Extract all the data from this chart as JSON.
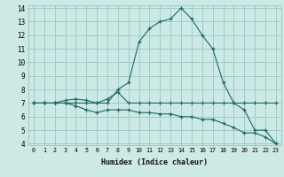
{
  "xlabel": "Humidex (Indice chaleur)",
  "x": [
    0,
    1,
    2,
    3,
    4,
    5,
    6,
    7,
    8,
    9,
    10,
    11,
    12,
    13,
    14,
    15,
    16,
    17,
    18,
    19,
    20,
    21,
    22,
    23
  ],
  "line1": [
    7,
    7,
    7,
    7,
    7,
    7,
    7,
    7,
    8,
    8.5,
    11.5,
    12.5,
    13,
    13.2,
    14,
    13.2,
    12,
    11,
    8.5,
    7,
    6.5,
    5,
    5,
    4
  ],
  "line2": [
    7,
    7,
    7,
    7.2,
    7.3,
    7.2,
    7,
    7.3,
    7.8,
    7,
    7,
    7,
    7,
    7,
    7,
    7,
    7,
    7,
    7,
    7,
    7,
    7,
    7,
    7
  ],
  "line3": [
    7,
    7,
    7,
    7,
    6.8,
    6.5,
    6.3,
    6.5,
    6.5,
    6.5,
    6.3,
    6.3,
    6.2,
    6.2,
    6.0,
    6.0,
    5.8,
    5.8,
    5.5,
    5.2,
    4.8,
    4.8,
    4.5,
    4
  ],
  "bg_color": "#cce9e5",
  "grid_color": "#9eccc7",
  "line_color": "#1a6b5e",
  "ylim": [
    4,
    14
  ],
  "xlim": [
    -0.5,
    23.5
  ],
  "yticks": [
    4,
    5,
    6,
    7,
    8,
    9,
    10,
    11,
    12,
    13,
    14
  ],
  "xticks": [
    0,
    1,
    2,
    3,
    4,
    5,
    6,
    7,
    8,
    9,
    10,
    11,
    12,
    13,
    14,
    15,
    16,
    17,
    18,
    19,
    20,
    21,
    22,
    23
  ]
}
